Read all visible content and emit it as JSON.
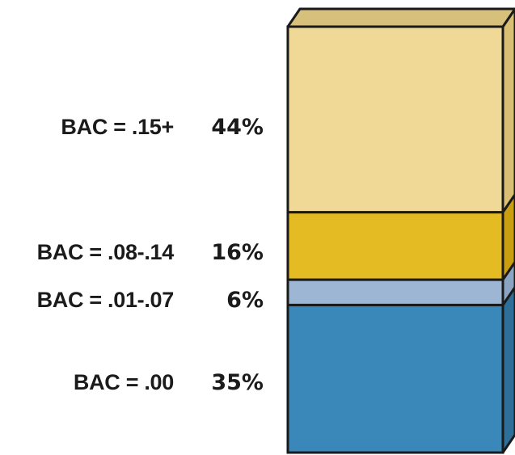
{
  "chart_data": {
    "type": "bar",
    "stacked": true,
    "three_d": true,
    "categories": [
      "BAC = .00",
      "BAC = .01-.07",
      "BAC = .08-.14",
      "BAC = .15+"
    ],
    "values": [
      35,
      6,
      16,
      44
    ],
    "value_labels": [
      "35%",
      "6%",
      "16%",
      "44%"
    ],
    "colors": [
      "#3a87ba",
      "#9db6d4",
      "#e4bb22",
      "#f0d896"
    ],
    "side_colors": [
      "#2d6f99",
      "#8aa4c2",
      "#c99f12",
      "#d9bf73"
    ],
    "top_color": "#d7c07b",
    "outline_color": "#1a1a1a",
    "title": "",
    "xlabel": "",
    "ylabel": "",
    "legend": "left-side labels",
    "grid": false
  }
}
